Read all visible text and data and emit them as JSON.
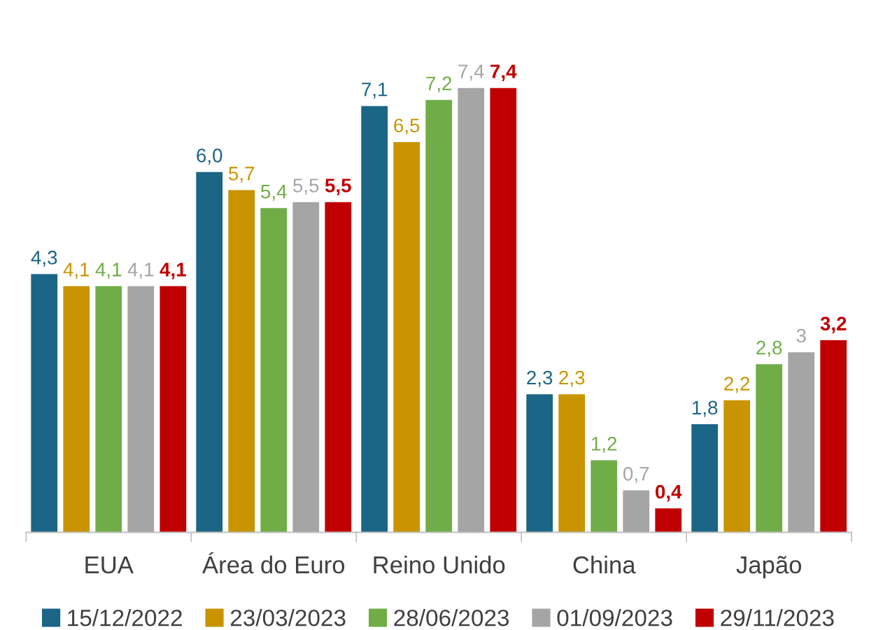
{
  "chart_data": {
    "type": "bar",
    "categories": [
      "EUA",
      "Área do Euro",
      "Reino Unido",
      "China",
      "Japão"
    ],
    "series": [
      {
        "name": "15/12/2022",
        "color": "#1b6586",
        "values": [
          4.3,
          6.0,
          7.1,
          2.3,
          1.8
        ],
        "value_labels": [
          "4,3",
          "6,0",
          "7,1",
          "2,3",
          "1,8"
        ]
      },
      {
        "name": "23/03/2023",
        "color": "#c99400",
        "values": [
          4.1,
          5.7,
          6.5,
          2.3,
          2.2
        ],
        "value_labels": [
          "4,1",
          "5,7",
          "6,5",
          "2,3",
          "2,2"
        ]
      },
      {
        "name": "28/06/2023",
        "color": "#70ad47",
        "values": [
          4.1,
          5.4,
          7.2,
          1.2,
          2.8
        ],
        "value_labels": [
          "4,1",
          "5,4",
          "7,2",
          "1,2",
          "2,8"
        ]
      },
      {
        "name": "01/09/2023",
        "color": "#a5a5a5",
        "values": [
          4.1,
          5.5,
          7.4,
          0.7,
          3
        ],
        "value_labels": [
          "4,1",
          "5,5",
          "7,4",
          "0,7",
          "3"
        ]
      },
      {
        "name": "29/11/2023",
        "color": "#c00000",
        "values": [
          4.1,
          5.5,
          7.4,
          0.4,
          3.2
        ],
        "value_labels": [
          "4,1",
          "5,5",
          "7,4",
          "0,4",
          "3,2"
        ]
      }
    ],
    "grid": false,
    "legend": "bottom"
  }
}
